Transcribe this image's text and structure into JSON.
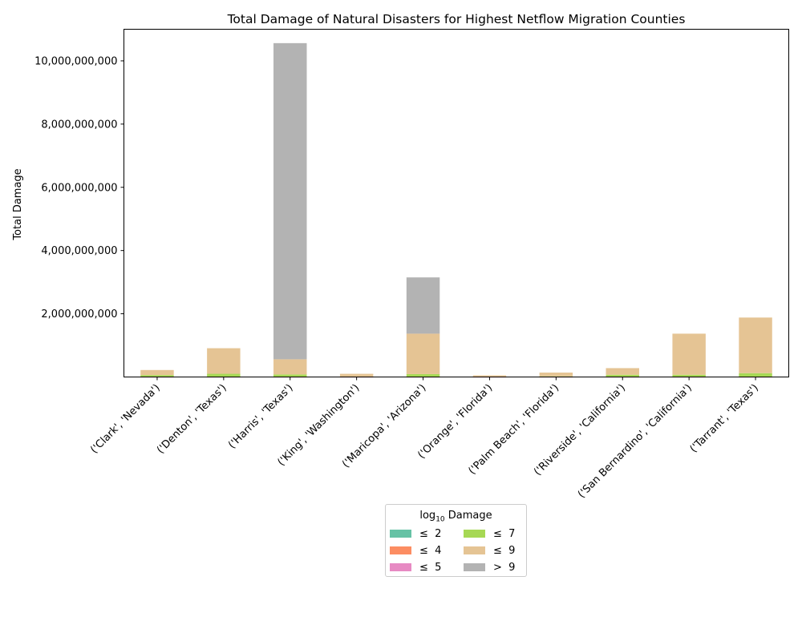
{
  "chart_data": {
    "type": "bar",
    "stacked": true,
    "title": "Total Damage of Natural Disasters for Highest Netflow Migration Counties",
    "xlabel": "",
    "ylabel": "Total Damage",
    "ylim": [
      0,
      11000000000
    ],
    "yticks": [
      2000000000,
      4000000000,
      6000000000,
      8000000000,
      10000000000
    ],
    "ytick_labels": [
      "2,000,000,000",
      "4,000,000,000",
      "6,000,000,000",
      "8,000,000,000",
      "10,000,000,000"
    ],
    "grid": false,
    "categories": [
      "('Clark', 'Nevada')",
      "('Denton', 'Texas')",
      "('Harris', 'Texas')",
      "('King', 'Washington')",
      "('Maricopa', 'Arizona')",
      "('Orange', 'Florida')",
      "('Palm Beach', 'Florida')",
      "('Riverside', 'California')",
      "('San Bernardino', 'California')",
      "('Tarrant', 'Texas')"
    ],
    "legend": {
      "title": "log10 Damage",
      "placement": "lower-center"
    },
    "series": [
      {
        "name": "≤  2",
        "color": "#66c2a5",
        "values": [
          0,
          0,
          0,
          0,
          0,
          0,
          0,
          0,
          0,
          0
        ]
      },
      {
        "name": "≤  4",
        "color": "#fc8d62",
        "values": [
          100000,
          100000,
          100000,
          100000,
          100000,
          100000,
          100000,
          100000,
          100000,
          100000
        ]
      },
      {
        "name": "≤  5",
        "color": "#e78ac3",
        "values": [
          300000,
          300000,
          300000,
          300000,
          300000,
          300000,
          300000,
          300000,
          300000,
          300000
        ]
      },
      {
        "name": "≤  7",
        "color": "#a6d854",
        "values": [
          60000000,
          100000000,
          80000000,
          10000000,
          90000000,
          10000000,
          20000000,
          70000000,
          70000000,
          120000000
        ]
      },
      {
        "name": "≤  9",
        "color": "#e5c494",
        "values": [
          160000000,
          810000000,
          480000000,
          90000000,
          1280000000,
          40000000,
          120000000,
          210000000,
          1300000000,
          1760000000
        ]
      },
      {
        "name": ">  9",
        "color": "#b3b3b3",
        "values": [
          0,
          0,
          10000000000,
          0,
          1780000000,
          0,
          0,
          0,
          0,
          0
        ]
      }
    ]
  }
}
